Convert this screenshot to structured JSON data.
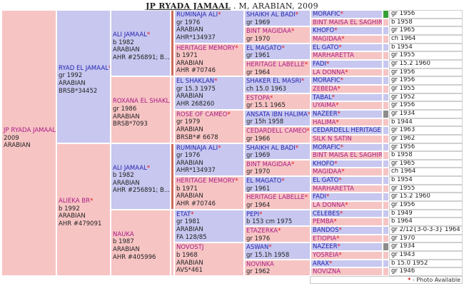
{
  "title": {
    "main": "JP RYADA JAMAAL",
    "rest": " . M, ARABIAN, 2009"
  },
  "subject": {
    "name": "JP RYADA JAMAAL",
    "lines": [
      "2009",
      "ARABIAN"
    ]
  },
  "gen1": [
    {
      "name": "RYAD EL JAMAAL",
      "star": "*",
      "lines": [
        "gr 1992",
        "ARABIAN",
        "BRSB*34452"
      ]
    },
    {
      "name": "ALIEKA BR",
      "star": "*",
      "lines": [
        "b 1992",
        "ARABIAN",
        "AHR #479091"
      ]
    }
  ],
  "gen2": [
    {
      "name": "ALI JAMAAL",
      "star": "*",
      "lines": [
        "b 1982",
        "ARABIAN",
        "AHR #256891; B..."
      ]
    },
    {
      "name": "ROXANA EL SHAKLAN",
      "star": "*",
      "lines": [
        "gr 1986",
        "ARABIAN",
        "BRSB*7093"
      ]
    },
    {
      "name": "ALI JAMAAL",
      "star": "*",
      "lines": [
        "b 1982",
        "ARABIAN",
        "AHR #256891; B..."
      ]
    },
    {
      "name": "NAUKA",
      "star": "",
      "lines": [
        "b 1987",
        "ARABIAN",
        "AHR #405996"
      ]
    }
  ],
  "gen3": [
    {
      "name": "RUMINAJA ALI",
      "star": "*",
      "lines": [
        "gr 1976",
        "ARABIAN",
        "AHR*134937"
      ]
    },
    {
      "name": "HERITAGE MEMORY",
      "star": "*",
      "lines": [
        "b 1971",
        "ARABIAN",
        "AHR #70746"
      ]
    },
    {
      "name": "EL SHAKLAN",
      "star": "*",
      "lines": [
        "gr 15.3 1975",
        "ARABIAN",
        "AHR 268260"
      ]
    },
    {
      "name": "ROSE OF CAMEO",
      "star": "*",
      "lines": [
        "gr 1979",
        "ARABIAN",
        "BRSB*# 6678"
      ]
    },
    {
      "name": "RUMINAJA ALI",
      "star": "*",
      "lines": [
        "gr 1976",
        "ARABIAN",
        "AHR*134937"
      ]
    },
    {
      "name": "HERITAGE MEMORY",
      "star": "*",
      "lines": [
        "b 1971",
        "ARABIAN",
        "AHR #70746"
      ]
    },
    {
      "name": "ETAT",
      "star": "*",
      "lines": [
        "gr 1981",
        "ARABIAN",
        "FA 128/85"
      ]
    },
    {
      "name": "NOVOSTJ",
      "star": "",
      "lines": [
        "b 1968",
        "ARABIAN",
        "AVS*461"
      ]
    }
  ],
  "gen4": [
    {
      "name": "SHAIKH AL BADI",
      "star": "*",
      "lines": [
        "gr 1969"
      ]
    },
    {
      "name": "BINT MAGIDAA",
      "star": "*",
      "lines": [
        "gr 1970"
      ]
    },
    {
      "name": "EL MAGATO",
      "star": "*",
      "lines": [
        "gr 1961"
      ]
    },
    {
      "name": "HERITAGE LABELLE",
      "star": "*",
      "lines": [
        "gr 1964"
      ]
    },
    {
      "name": "SHAKER EL MASRI",
      "star": "*",
      "lines": [
        "ch 15.0 1963"
      ]
    },
    {
      "name": "ESTOPA",
      "star": "*",
      "lines": [
        "gr 15.1 1965"
      ]
    },
    {
      "name": "ANSATA IBN HALIMA",
      "star": "*",
      "lines": [
        "gr 15h 1958"
      ]
    },
    {
      "name": "CEDARDELL CAMEO",
      "star": "*",
      "lines": [
        "gr 1966"
      ]
    },
    {
      "name": "SHAIKH AL BADI",
      "star": "*",
      "lines": [
        "gr 1969"
      ]
    },
    {
      "name": "BINT MAGIDAA",
      "star": "*",
      "lines": [
        "gr 1970"
      ]
    },
    {
      "name": "EL MAGATO",
      "star": "*",
      "lines": [
        "gr 1961"
      ]
    },
    {
      "name": "HERITAGE LABELLE",
      "star": "*",
      "lines": [
        "gr 1964"
      ]
    },
    {
      "name": "PEPI",
      "star": "*",
      "lines": [
        "b 153 cm 1975"
      ]
    },
    {
      "name": "ETAZERKA",
      "star": "*",
      "lines": [
        "gr 1976"
      ]
    },
    {
      "name": "ASWAN",
      "star": "*",
      "lines": [
        "gr 15.1h 1958"
      ]
    },
    {
      "name": "NOVINKA",
      "star": "",
      "lines": [
        "gr 1962"
      ]
    }
  ],
  "gen5": [
    {
      "name": "MORAFIC",
      "star": "*",
      "year": "gr 1956"
    },
    {
      "name": "BINT MAISA EL SAGHIRA",
      "star": "*",
      "year": "b 1958"
    },
    {
      "name": "KHOFO",
      "star": "*",
      "year": "gr 1965"
    },
    {
      "name": "MAGIDAA",
      "star": "*",
      "year": "ch 1964"
    },
    {
      "name": "EL GATO",
      "star": "*",
      "year": "b 1954"
    },
    {
      "name": "MARHARETTA",
      "star": "",
      "year": "gr 1955"
    },
    {
      "name": "FADI",
      "star": "*",
      "year": "gr 15.2 1960"
    },
    {
      "name": "LA DONNA",
      "star": "*",
      "year": "gr 1956"
    },
    {
      "name": "MORAFIC",
      "star": "*",
      "year": "gr 1956"
    },
    {
      "name": "ZEBEDA",
      "star": "*",
      "year": "gr 1955"
    },
    {
      "name": "TABAL",
      "star": "*",
      "year": "gr 1952"
    },
    {
      "name": "UYAIMA",
      "star": "*",
      "year": "gr 1956"
    },
    {
      "name": "NAZEER",
      "star": "*",
      "year": "gr 1934"
    },
    {
      "name": "HALIMA",
      "star": "*",
      "year": "b 1944"
    },
    {
      "name": "CEDARDELL HERITAGE",
      "star": "*",
      "year": "gr 1963"
    },
    {
      "name": "SILK N SATIN",
      "star": "",
      "year": "gr 1962"
    },
    {
      "name": "MORAFIC",
      "star": "*",
      "year": "gr 1956"
    },
    {
      "name": "BINT MAISA EL SAGHIRA",
      "star": "*",
      "year": "b 1958"
    },
    {
      "name": "KHOFO",
      "star": "*",
      "year": "gr 1965"
    },
    {
      "name": "MAGIDAA",
      "star": "*",
      "year": "ch 1964"
    },
    {
      "name": "EL GATO",
      "star": "*",
      "year": "b 1954"
    },
    {
      "name": "MARHARETTA",
      "star": "",
      "year": "gr 1955"
    },
    {
      "name": "FADI",
      "star": "*",
      "year": "gr 15.2 1960"
    },
    {
      "name": "LA DONNA",
      "star": "*",
      "year": "gr 1956"
    },
    {
      "name": "CELEBES",
      "star": "*",
      "year": "b 1949"
    },
    {
      "name": "PEMBA",
      "star": "*",
      "year": "b 1964"
    },
    {
      "name": "BANDOS",
      "star": "*",
      "year": "gr 2/12{3-0-3-3} 1964"
    },
    {
      "name": "ETIOPIA",
      "star": "*",
      "year": "gr 1970"
    },
    {
      "name": "NAZEER",
      "star": "*",
      "year": "gr 1934"
    },
    {
      "name": "YOSREIA",
      "star": "*",
      "year": "gr 1943"
    },
    {
      "name": "ARAX",
      "star": "*",
      "year": "b 15.0 1952"
    },
    {
      "name": "NOVIZNA",
      "star": "",
      "year": "gr 1946"
    }
  ],
  "photo_markers": [
    {
      "row": 0,
      "color": "#35a035"
    },
    {
      "row": 12,
      "color": "#8c8c8c"
    },
    {
      "row": 28,
      "color": "#8c8c8c"
    }
  ],
  "legend": {
    "star": "*",
    "text": " - Photo Available"
  },
  "colors": {
    "male": "#c7c7f0",
    "female": "#f7c4c4",
    "name_male": "#2424b0",
    "name_female": "#a81b84",
    "star": "#e0141e"
  }
}
